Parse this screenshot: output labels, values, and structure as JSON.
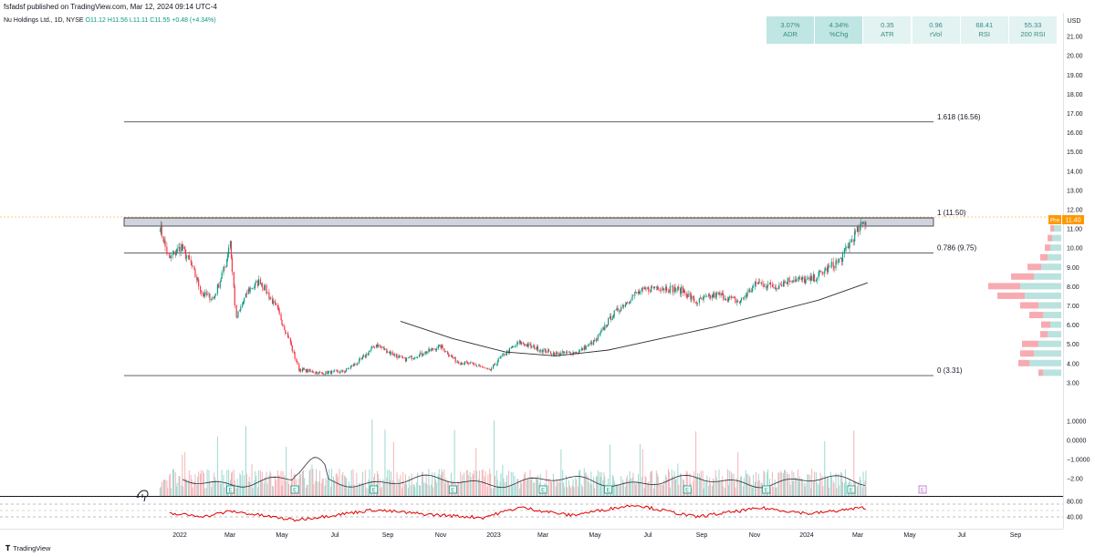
{
  "header": {
    "published": "fsfadsf published on TradingView.com, Mar 12, 2024 09:14 UTC-4",
    "symbol": "Nu Holdings Ltd., 1D, NYSE",
    "open": "O11.12",
    "high": "H11.56",
    "low": "L11.11",
    "close": "C11.55",
    "change": "+0.48 (+4.34%)"
  },
  "stats": [
    {
      "value": "3.07%",
      "label": "ADR"
    },
    {
      "value": "4.34%",
      "label": "%Chg"
    },
    {
      "value": "0.35",
      "label": "ATR"
    },
    {
      "value": "0.96",
      "label": "rVol"
    },
    {
      "value": "68.41",
      "label": "RSI"
    },
    {
      "value": "55.33",
      "label": "200 RSI"
    }
  ],
  "currency": "USD",
  "price_axis": [
    "21.00",
    "20.00",
    "19.00",
    "18.00",
    "17.00",
    "16.00",
    "15.00",
    "14.00",
    "13.00",
    "12.00",
    "11.00",
    "10.00",
    "9.00",
    "8.00",
    "7.00",
    "6.00",
    "5.00",
    "4.00",
    "3.00"
  ],
  "volume_axis": [
    "1.0000",
    "0.0000",
    "−1.0000",
    "−2.00"
  ],
  "rsi_axis": [
    "80.00",
    "40.00"
  ],
  "time_axis": [
    "2022",
    "Mar",
    "May",
    "Jul",
    "Sep",
    "Nov",
    "2023",
    "Mar",
    "May",
    "Jul",
    "Sep",
    "Nov",
    "2024",
    "Mar",
    "May",
    "Jul",
    "Sep"
  ],
  "fib_levels": [
    {
      "ratio": "1.618",
      "price": 16.56,
      "label": "1.618 (16.56)"
    },
    {
      "ratio": "1",
      "price": 11.5,
      "label": "1 (11.50)"
    },
    {
      "ratio": "0.786",
      "price": 9.75,
      "label": "0.786 (9.75)"
    },
    {
      "ratio": "0",
      "price": 3.31,
      "label": "0 (3.31)"
    }
  ],
  "price_tag": {
    "label": "Pre",
    "value": "11.40"
  },
  "earnings_marker": "E",
  "footer": {
    "brand": "TradingView"
  },
  "colors": {
    "up": "#089981",
    "down": "#f23645",
    "ma": "#2a2e39",
    "fib": "#2a2e39",
    "zone": "#d1d4dc",
    "rsi": "#e00000",
    "tag": "#ff9800"
  },
  "chart_data": {
    "type": "candlestick",
    "x_range": [
      "2021-12-09",
      "2024-09-30"
    ],
    "y_range": [
      3.0,
      21.5
    ],
    "close_path": [
      {
        "date": "2021-12-09",
        "close": 11.2
      },
      {
        "date": "2021-12-13",
        "close": 10.5
      },
      {
        "date": "2021-12-20",
        "close": 9.4
      },
      {
        "date": "2022-01-03",
        "close": 10.1
      },
      {
        "date": "2022-01-14",
        "close": 9.2
      },
      {
        "date": "2022-01-28",
        "close": 7.6
      },
      {
        "date": "2022-02-10",
        "close": 7.4
      },
      {
        "date": "2022-02-24",
        "close": 9.2
      },
      {
        "date": "2022-03-01",
        "close": 10.4
      },
      {
        "date": "2022-03-08",
        "close": 6.3
      },
      {
        "date": "2022-03-22",
        "close": 7.8
      },
      {
        "date": "2022-04-05",
        "close": 8.3
      },
      {
        "date": "2022-04-25",
        "close": 6.8
      },
      {
        "date": "2022-05-10",
        "close": 5.1
      },
      {
        "date": "2022-05-20",
        "close": 3.7
      },
      {
        "date": "2022-06-15",
        "close": 3.5
      },
      {
        "date": "2022-07-12",
        "close": 3.6
      },
      {
        "date": "2022-08-01",
        "close": 4.2
      },
      {
        "date": "2022-08-18",
        "close": 5.0
      },
      {
        "date": "2022-09-02",
        "close": 4.6
      },
      {
        "date": "2022-09-20",
        "close": 4.2
      },
      {
        "date": "2022-10-10",
        "close": 4.5
      },
      {
        "date": "2022-11-01",
        "close": 4.9
      },
      {
        "date": "2022-11-20",
        "close": 4.1
      },
      {
        "date": "2022-12-15",
        "close": 3.9
      },
      {
        "date": "2022-12-28",
        "close": 3.6
      },
      {
        "date": "2023-01-12",
        "close": 4.4
      },
      {
        "date": "2023-02-01",
        "close": 5.1
      },
      {
        "date": "2023-02-20",
        "close": 4.8
      },
      {
        "date": "2023-03-15",
        "close": 4.5
      },
      {
        "date": "2023-04-10",
        "close": 4.6
      },
      {
        "date": "2023-05-01",
        "close": 5.2
      },
      {
        "date": "2023-05-20",
        "close": 6.5
      },
      {
        "date": "2023-06-15",
        "close": 7.6
      },
      {
        "date": "2023-07-10",
        "close": 8.0
      },
      {
        "date": "2023-08-10",
        "close": 7.8
      },
      {
        "date": "2023-08-25",
        "close": 7.2
      },
      {
        "date": "2023-09-20",
        "close": 7.6
      },
      {
        "date": "2023-10-15",
        "close": 7.2
      },
      {
        "date": "2023-11-05",
        "close": 8.2
      },
      {
        "date": "2023-11-25",
        "close": 8.0
      },
      {
        "date": "2023-12-15",
        "close": 8.4
      },
      {
        "date": "2024-01-05",
        "close": 8.3
      },
      {
        "date": "2024-01-25",
        "close": 8.9
      },
      {
        "date": "2024-02-10",
        "close": 9.4
      },
      {
        "date": "2024-02-25",
        "close": 10.6
      },
      {
        "date": "2024-03-12",
        "close": 11.55
      }
    ],
    "ma200": [
      {
        "date": "2022-09-15",
        "value": 6.2
      },
      {
        "date": "2022-11-15",
        "value": 5.3
      },
      {
        "date": "2023-01-15",
        "value": 4.6
      },
      {
        "date": "2023-03-15",
        "value": 4.4
      },
      {
        "date": "2023-05-15",
        "value": 4.7
      },
      {
        "date": "2023-07-15",
        "value": 5.3
      },
      {
        "date": "2023-09-15",
        "value": 5.9
      },
      {
        "date": "2023-11-15",
        "value": 6.6
      },
      {
        "date": "2024-01-15",
        "value": 7.3
      },
      {
        "date": "2024-03-12",
        "value": 8.2
      }
    ],
    "volume_profile": [
      {
        "price": 3.5,
        "up": 20,
        "down": 5
      },
      {
        "price": 4.0,
        "up": 35,
        "down": 12
      },
      {
        "price": 4.5,
        "up": 30,
        "down": 15
      },
      {
        "price": 5.0,
        "up": 25,
        "down": 18
      },
      {
        "price": 5.5,
        "up": 15,
        "down": 8
      },
      {
        "price": 6.0,
        "up": 12,
        "down": 10
      },
      {
        "price": 6.5,
        "up": 20,
        "down": 15
      },
      {
        "price": 7.0,
        "up": 25,
        "down": 20
      },
      {
        "price": 7.5,
        "up": 40,
        "down": 30
      },
      {
        "price": 8.0,
        "up": 45,
        "down": 35
      },
      {
        "price": 8.5,
        "up": 30,
        "down": 25
      },
      {
        "price": 9.0,
        "up": 22,
        "down": 15
      },
      {
        "price": 9.5,
        "up": 15,
        "down": 8
      },
      {
        "price": 10.0,
        "up": 12,
        "down": 6
      },
      {
        "price": 10.5,
        "up": 10,
        "down": 5
      },
      {
        "price": 11.0,
        "up": 8,
        "down": 4
      }
    ],
    "rsi_path": [
      {
        "date": "2021-12-20",
        "value": 50
      },
      {
        "date": "2022-02-01",
        "value": 42
      },
      {
        "date": "2022-03-01",
        "value": 58
      },
      {
        "date": "2022-05-15",
        "value": 30
      },
      {
        "date": "2022-08-15",
        "value": 62
      },
      {
        "date": "2022-10-15",
        "value": 48
      },
      {
        "date": "2022-12-20",
        "value": 38
      },
      {
        "date": "2023-02-01",
        "value": 70
      },
      {
        "date": "2023-04-01",
        "value": 45
      },
      {
        "date": "2023-06-15",
        "value": 78
      },
      {
        "date": "2023-08-25",
        "value": 40
      },
      {
        "date": "2023-11-10",
        "value": 68
      },
      {
        "date": "2024-01-05",
        "value": 50
      },
      {
        "date": "2024-03-12",
        "value": 70
      }
    ],
    "earnings_dates": [
      "2022-03-01",
      "2022-05-15",
      "2022-08-15",
      "2022-11-15",
      "2023-02-28",
      "2023-05-15",
      "2023-08-15",
      "2023-11-15",
      "2024-02-22",
      "2024-05-15"
    ]
  }
}
